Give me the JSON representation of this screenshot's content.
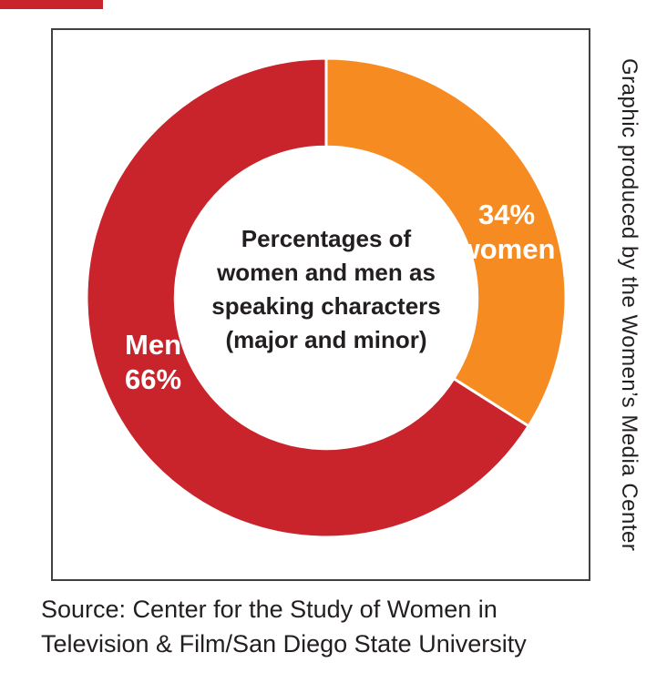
{
  "page": {
    "background": "#ffffff"
  },
  "decor": {
    "top_left_bar_color": "#c9242c"
  },
  "frame": {
    "border_color": "#414042"
  },
  "chart_data": {
    "type": "pie",
    "donut": true,
    "inner_radius_ratio": 0.63,
    "start_angle_deg": 0,
    "direction": "clockwise",
    "gap_color": "#ffffff",
    "title": "Percentages of women and men as speaking characters (major and minor)",
    "title_lines": [
      "Percentages of",
      "women and men as",
      "speaking characters",
      "(major and minor)"
    ],
    "slices": [
      {
        "name": "women",
        "value": 34,
        "color": "#f68b21",
        "label_lines": [
          "34%",
          "women"
        ]
      },
      {
        "name": "men",
        "value": 66,
        "color": "#c9242c",
        "label_lines": [
          "Men",
          "66%"
        ]
      }
    ],
    "legend": "none",
    "annotations": {
      "credit": "Graphic produced by the Women’s Media Center",
      "source": "Source: Center for the Study of Women in Television & Film/San Diego State University"
    }
  },
  "credit": {
    "text": "Graphic produced by the Women’s Media Center"
  },
  "source": {
    "line1": "Source: Center for the Study of Women in",
    "line2": "Television & Film/San Diego State University"
  }
}
